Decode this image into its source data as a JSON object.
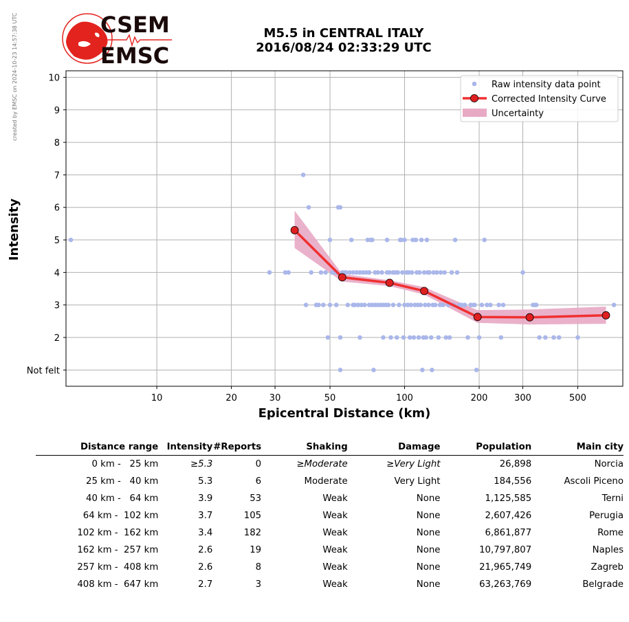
{
  "watermark": "created by EMSC on 2024-10-23 14:57:38 UTC",
  "logo": {
    "text_top": "CSEM",
    "text_bottom": "EMSC",
    "color_text": "#1a0a0a",
    "color_globe": "#e3231e"
  },
  "title": {
    "line1": "M5.5 in CENTRAL ITALY",
    "line2": "2016/08/24 02:33:29 UTC"
  },
  "chart_data": {
    "type": "scatter",
    "xlabel": "Epicentral Distance (km)",
    "ylabel": "Intensity",
    "xscale": "log",
    "xlim": [
      4.3,
      760
    ],
    "ylim": [
      0.5,
      10.2
    ],
    "xticks": [
      10,
      20,
      30,
      50,
      100,
      200,
      300,
      500
    ],
    "xtick_labels": [
      "10",
      "20",
      "30",
      "50",
      "100",
      "200",
      "300",
      "500"
    ],
    "yticks": [
      1,
      2,
      3,
      4,
      5,
      6,
      7,
      8,
      9,
      10
    ],
    "ytick_labels": [
      "Not felt",
      "2",
      "3",
      "4",
      "5",
      "6",
      "7",
      "8",
      "9",
      "10"
    ],
    "grid": true,
    "legend_position": "top-right",
    "legend": {
      "raw": "Raw intensity data point",
      "curve": "Corrected Intensity Curve",
      "uncertainty": "Uncertainty"
    },
    "colors": {
      "raw": "#aab7ea",
      "curve": "#f03030",
      "marker": "#e02020",
      "uncertainty": "#e8a9c4"
    },
    "raw_points": [
      [
        4.5,
        5
      ],
      [
        28.5,
        4
      ],
      [
        33,
        4
      ],
      [
        34,
        4
      ],
      [
        39,
        7
      ],
      [
        41,
        6
      ],
      [
        40,
        3
      ],
      [
        42,
        4
      ],
      [
        44,
        3
      ],
      [
        45,
        3
      ],
      [
        46,
        4
      ],
      [
        47,
        3
      ],
      [
        48,
        4
      ],
      [
        49,
        2
      ],
      [
        50,
        5
      ],
      [
        50,
        3
      ],
      [
        51,
        4
      ],
      [
        52,
        4
      ],
      [
        53,
        3
      ],
      [
        53,
        4
      ],
      [
        54,
        6
      ],
      [
        55,
        6
      ],
      [
        55,
        2
      ],
      [
        55,
        1
      ],
      [
        56,
        4
      ],
      [
        57,
        4
      ],
      [
        58,
        4
      ],
      [
        59,
        3
      ],
      [
        60,
        4
      ],
      [
        61,
        5
      ],
      [
        62,
        3
      ],
      [
        62,
        4
      ],
      [
        63,
        3
      ],
      [
        64,
        4
      ],
      [
        65,
        3
      ],
      [
        66,
        2
      ],
      [
        66,
        4
      ],
      [
        67,
        3
      ],
      [
        68,
        4
      ],
      [
        69,
        3
      ],
      [
        70,
        4
      ],
      [
        71,
        5
      ],
      [
        72,
        3
      ],
      [
        72,
        4
      ],
      [
        73,
        5
      ],
      [
        74,
        5
      ],
      [
        74,
        3
      ],
      [
        75,
        1
      ],
      [
        76,
        3
      ],
      [
        76,
        4
      ],
      [
        78,
        3
      ],
      [
        78,
        4
      ],
      [
        80,
        3
      ],
      [
        81,
        4
      ],
      [
        82,
        2
      ],
      [
        82,
        3
      ],
      [
        84,
        3
      ],
      [
        85,
        5
      ],
      [
        85,
        4
      ],
      [
        86,
        3
      ],
      [
        87,
        4
      ],
      [
        88,
        2
      ],
      [
        90,
        3
      ],
      [
        90,
        4
      ],
      [
        92,
        4
      ],
      [
        93,
        2
      ],
      [
        94,
        4
      ],
      [
        95,
        3
      ],
      [
        96,
        5
      ],
      [
        97,
        5
      ],
      [
        98,
        4
      ],
      [
        99,
        2
      ],
      [
        100,
        3
      ],
      [
        100,
        5
      ],
      [
        102,
        4
      ],
      [
        103,
        3
      ],
      [
        104,
        4
      ],
      [
        105,
        2
      ],
      [
        106,
        3
      ],
      [
        107,
        4
      ],
      [
        108,
        5
      ],
      [
        109,
        2
      ],
      [
        110,
        3
      ],
      [
        111,
        5
      ],
      [
        112,
        4
      ],
      [
        113,
        3
      ],
      [
        114,
        2
      ],
      [
        115,
        4
      ],
      [
        116,
        3
      ],
      [
        117,
        5
      ],
      [
        118,
        1
      ],
      [
        119,
        2
      ],
      [
        120,
        4
      ],
      [
        121,
        3
      ],
      [
        122,
        2
      ],
      [
        123,
        5
      ],
      [
        124,
        4
      ],
      [
        125,
        3
      ],
      [
        126,
        4
      ],
      [
        128,
        2
      ],
      [
        129,
        1
      ],
      [
        130,
        3
      ],
      [
        131,
        4
      ],
      [
        133,
        3
      ],
      [
        135,
        4
      ],
      [
        137,
        2
      ],
      [
        139,
        3
      ],
      [
        140,
        4
      ],
      [
        143,
        3
      ],
      [
        145,
        4
      ],
      [
        147,
        2
      ],
      [
        150,
        3
      ],
      [
        152,
        2
      ],
      [
        155,
        4
      ],
      [
        158,
        3
      ],
      [
        160,
        5
      ],
      [
        163,
        4
      ],
      [
        166,
        3
      ],
      [
        170,
        3
      ],
      [
        175,
        3
      ],
      [
        180,
        2
      ],
      [
        185,
        3
      ],
      [
        190,
        3
      ],
      [
        192,
        3
      ],
      [
        195,
        1
      ],
      [
        200,
        2
      ],
      [
        205,
        3
      ],
      [
        210,
        5
      ],
      [
        215,
        3
      ],
      [
        222,
        3
      ],
      [
        240,
        3
      ],
      [
        245,
        2
      ],
      [
        250,
        3
      ],
      [
        300,
        4
      ],
      [
        330,
        3
      ],
      [
        335,
        3
      ],
      [
        340,
        3
      ],
      [
        350,
        2
      ],
      [
        370,
        2
      ],
      [
        400,
        2
      ],
      [
        420,
        2
      ],
      [
        500,
        2
      ],
      [
        700,
        3
      ]
    ],
    "curve": {
      "x": [
        36,
        56,
        87,
        120,
        197,
        320,
        650
      ],
      "y": [
        5.3,
        3.85,
        3.68,
        3.43,
        2.63,
        2.62,
        2.68
      ],
      "upper": [
        5.9,
        3.95,
        3.76,
        3.55,
        2.84,
        2.86,
        2.95
      ],
      "lower": [
        4.75,
        3.72,
        3.58,
        3.32,
        2.45,
        2.4,
        2.42
      ]
    }
  },
  "table": {
    "headers": [
      "Distance range",
      "Intensity",
      "#Reports",
      "Shaking",
      "Damage",
      "Population",
      "Main city"
    ],
    "rows": [
      {
        "range": "0 km -   25 km",
        "intensity": "≥5.3",
        "reports": "0",
        "shaking": "≥Moderate",
        "damage": "≥Very Light",
        "population": "26,898",
        "city": "Norcia"
      },
      {
        "range": "25 km -   40 km",
        "intensity": "5.3",
        "reports": "6",
        "shaking": "Moderate",
        "damage": "Very Light",
        "population": "184,556",
        "city": "Ascoli Piceno"
      },
      {
        "range": "40 km -   64 km",
        "intensity": "3.9",
        "reports": "53",
        "shaking": "Weak",
        "damage": "None",
        "population": "1,125,585",
        "city": "Terni"
      },
      {
        "range": "64 km -  102 km",
        "intensity": "3.7",
        "reports": "105",
        "shaking": "Weak",
        "damage": "None",
        "population": "2,607,426",
        "city": "Perugia"
      },
      {
        "range": "102 km -  162 km",
        "intensity": "3.4",
        "reports": "182",
        "shaking": "Weak",
        "damage": "None",
        "population": "6,861,877",
        "city": "Rome"
      },
      {
        "range": "162 km -  257 km",
        "intensity": "2.6",
        "reports": "19",
        "shaking": "Weak",
        "damage": "None",
        "population": "10,797,807",
        "city": "Naples"
      },
      {
        "range": "257 km -  408 km",
        "intensity": "2.6",
        "reports": "8",
        "shaking": "Weak",
        "damage": "None",
        "population": "21,965,749",
        "city": "Zagreb"
      },
      {
        "range": "408 km -  647 km",
        "intensity": "2.7",
        "reports": "3",
        "shaking": "Weak",
        "damage": "None",
        "population": "63,263,769",
        "city": "Belgrade"
      }
    ]
  }
}
